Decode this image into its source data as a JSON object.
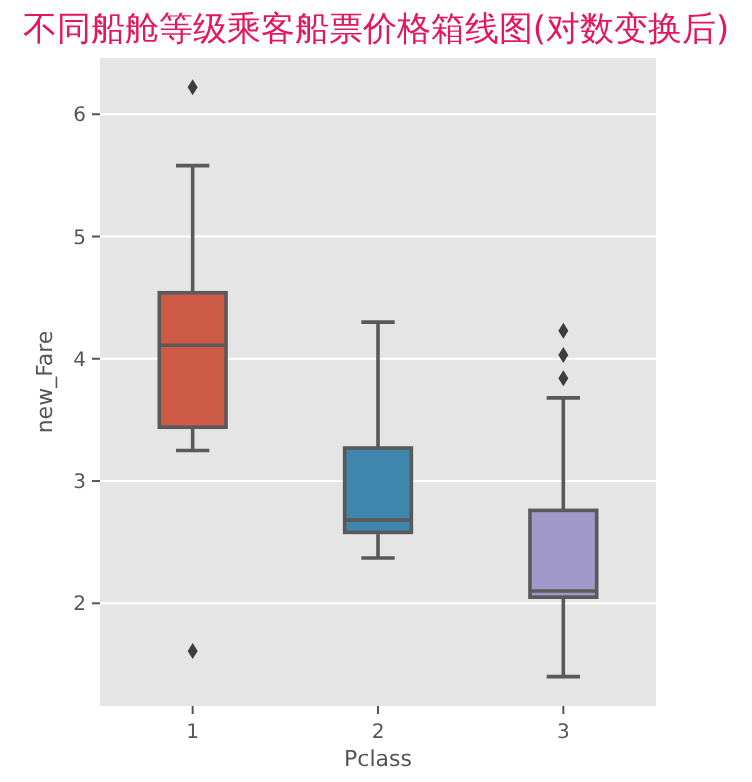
{
  "chart_data": {
    "type": "box",
    "title": "不同船舱等级乘客船票价格箱线图(对数变换后)",
    "xlabel": "Pclass",
    "ylabel": "new_Fare",
    "categories": [
      "1",
      "2",
      "3"
    ],
    "colors": [
      "#cd5a45",
      "#3f86ad",
      "#9f98c9"
    ],
    "boxes": [
      {
        "low": 3.25,
        "q1": 3.44,
        "median": 4.11,
        "q3": 4.54,
        "high": 5.58,
        "outliers": [
          6.22,
          1.61
        ]
      },
      {
        "low": 2.37,
        "q1": 2.58,
        "median": 2.68,
        "q3": 3.27,
        "high": 4.3
      },
      {
        "low": 1.4,
        "q1": 2.05,
        "median": 2.1,
        "q3": 2.76,
        "high": 3.68,
        "outliers": [
          4.23,
          4.03,
          3.84
        ]
      }
    ],
    "ylim": [
      1.16,
      6.46
    ],
    "yticks": [
      2,
      3,
      4,
      5,
      6
    ],
    "grid": "y"
  }
}
